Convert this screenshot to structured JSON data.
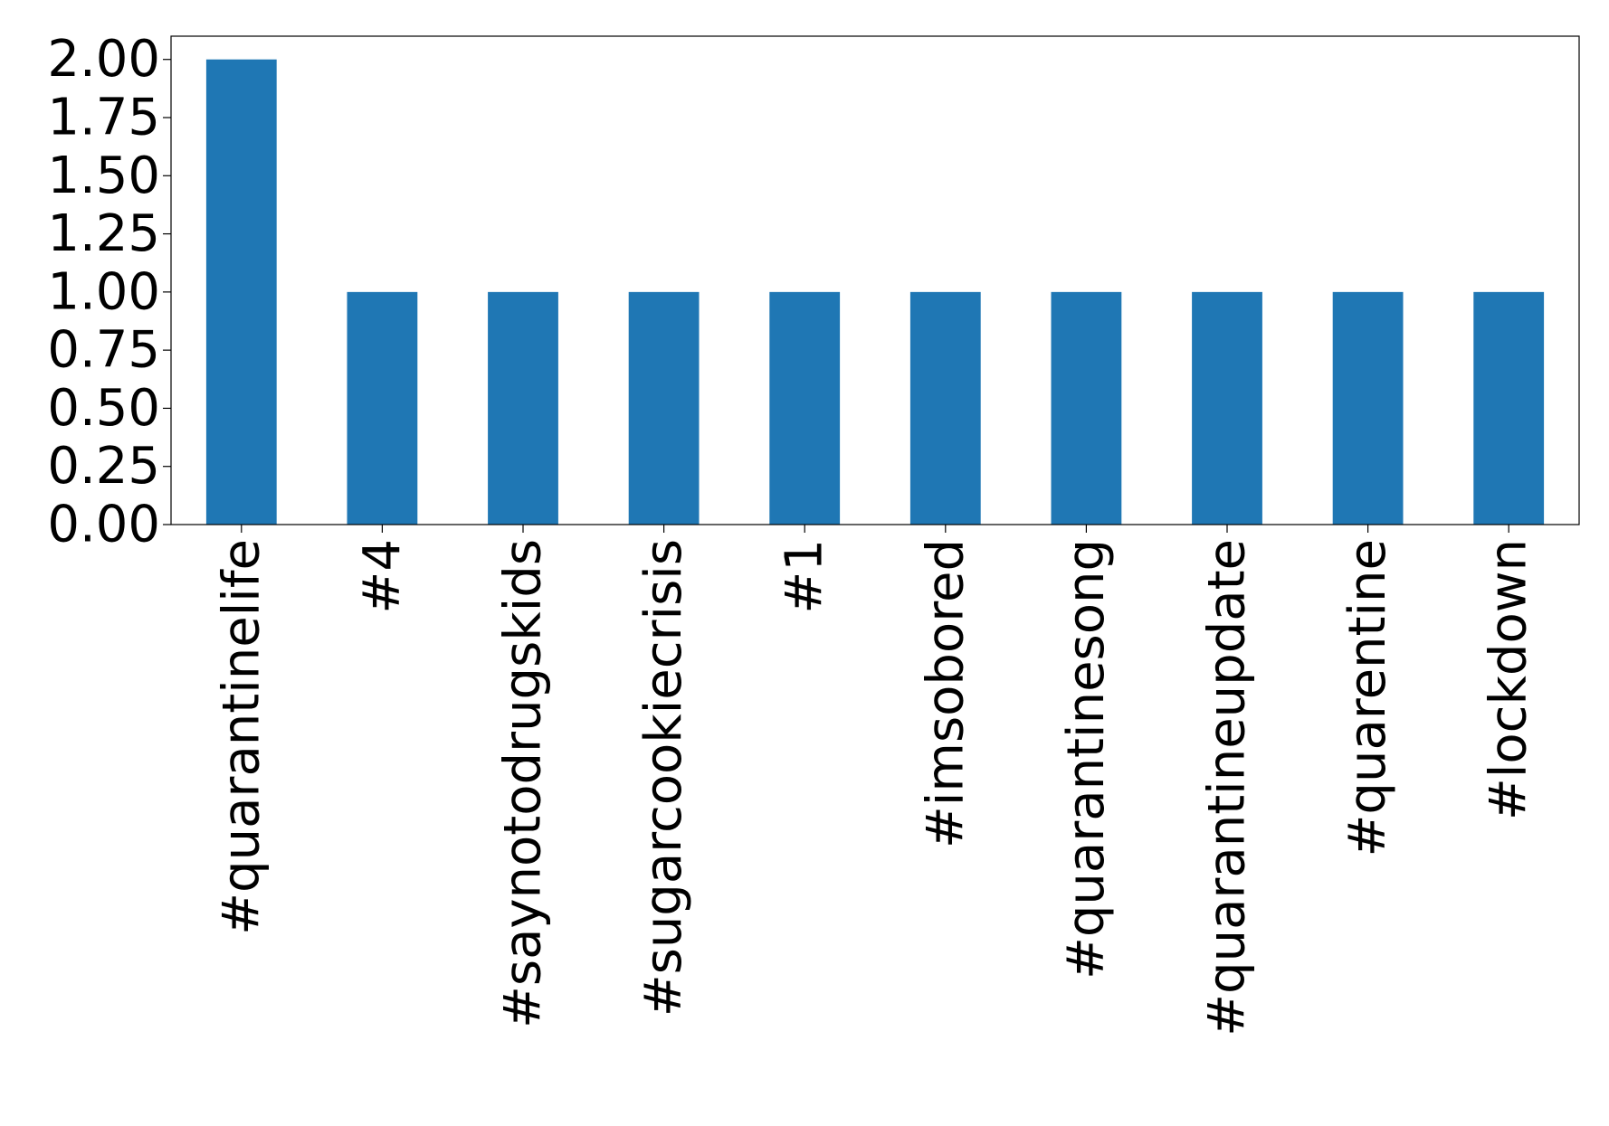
{
  "chart_data": {
    "type": "bar",
    "title": "",
    "xlabel": "",
    "ylabel": "",
    "categories": [
      "#quarantinelife",
      "#4",
      "#saynotodrugskids",
      "#sugarcookiecrisis",
      "#1",
      "#imsobored",
      "#quarantinesong",
      "#quarantineupdate",
      "#quarentine",
      "#lockdown"
    ],
    "values": [
      2,
      1,
      1,
      1,
      1,
      1,
      1,
      1,
      1,
      1
    ],
    "ylim": [
      0,
      2.1
    ],
    "yticks": [
      "0.00",
      "0.25",
      "0.50",
      "0.75",
      "1.00",
      "1.25",
      "1.50",
      "1.75",
      "2.00"
    ],
    "ytick_values": [
      0,
      0.25,
      0.5,
      0.75,
      1.0,
      1.25,
      1.5,
      1.75,
      2.0
    ],
    "grid": false,
    "legend": "none",
    "bar_color": "#1f77b4"
  }
}
